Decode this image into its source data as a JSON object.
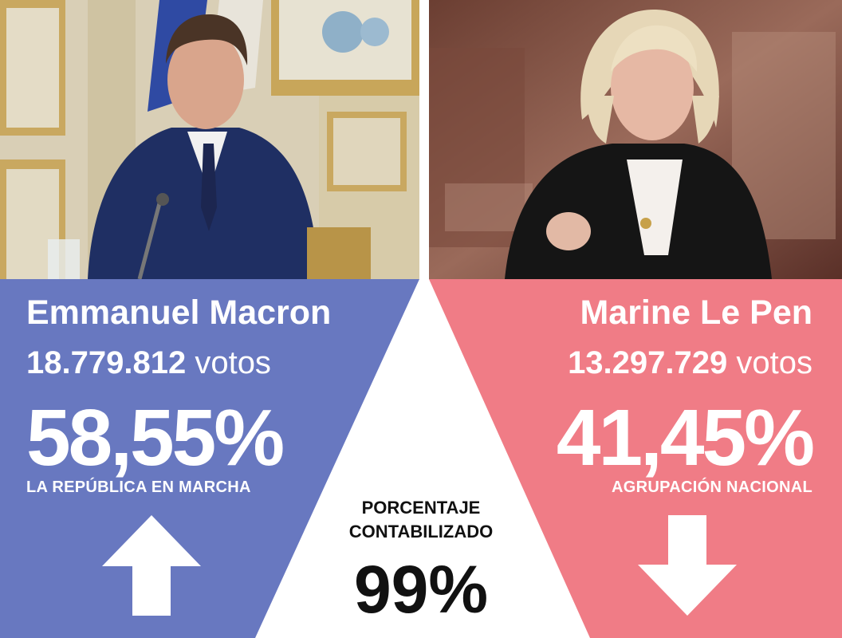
{
  "colors": {
    "macron_panel": "#6878C0",
    "lepen_panel": "#F07C86",
    "text_light": "#FFFFFF",
    "text_dark": "#111111"
  },
  "candidates": [
    {
      "name": "Emmanuel Macron",
      "votes_number": "18.779.812",
      "votes_label": "votos",
      "percentage": "58,55%",
      "party": "LA REPÚBLICA EN MARCHA",
      "trend_icon": "arrow-up-icon"
    },
    {
      "name": "Marine Le Pen",
      "votes_number": "13.297.729",
      "votes_label": "votos",
      "percentage": "41,45%",
      "party": "AGRUPACIÓN NACIONAL",
      "trend_icon": "arrow-down-icon"
    }
  ],
  "counted": {
    "label": "PORCENTAJE CONTABILIZADO",
    "value": "99%"
  }
}
